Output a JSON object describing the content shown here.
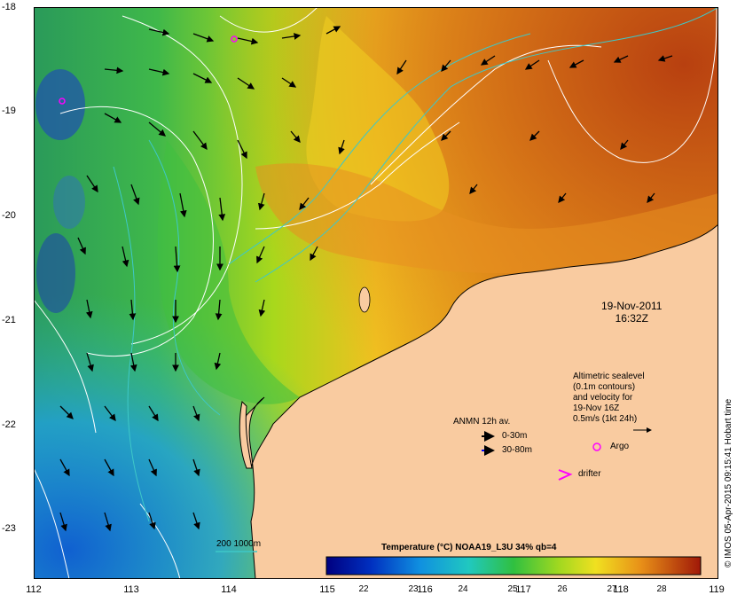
{
  "map": {
    "axes": {
      "y_labels": [
        "-18",
        "-19",
        "-20",
        "-21",
        "-22",
        "-23"
      ],
      "x_labels": [
        "112",
        "113",
        "114",
        "115",
        "116",
        "117",
        "118",
        "119"
      ]
    },
    "date_line1": "19-Nov-2011",
    "date_line2": "16:32Z",
    "altimetry": {
      "line1": "Altimetric sealevel",
      "line2": "(0.1m contours)",
      "line3": "and velocity for",
      "line4": "19-Nov 16Z",
      "line5": "0.5m/s (1kt 24h)"
    },
    "anmn": {
      "title": "ANMN 12h av.",
      "row1": "0-30m",
      "row2": "30-80m",
      "row1_color": "#000000",
      "row2_color": "#0000ff"
    },
    "markers": {
      "argo": "Argo",
      "drifter": "drifter",
      "argo_color": "#ff00ff"
    },
    "isobath_label": "200  1000m",
    "colorbar": {
      "title": "Temperature (°C) NOAA19_L3U 34% qb=4",
      "ticks": [
        "22",
        "23",
        "24",
        "25",
        "26",
        "27",
        "28"
      ],
      "range": [
        21.4,
        28.9
      ]
    },
    "stamp": "© IMOS 05-Apr-2015 09:15:41 Hobart time",
    "colors": {
      "land": "#f9cba0",
      "isobath": "#3ec8c8",
      "contour": "#ffffff",
      "arrow": "#000000"
    }
  }
}
